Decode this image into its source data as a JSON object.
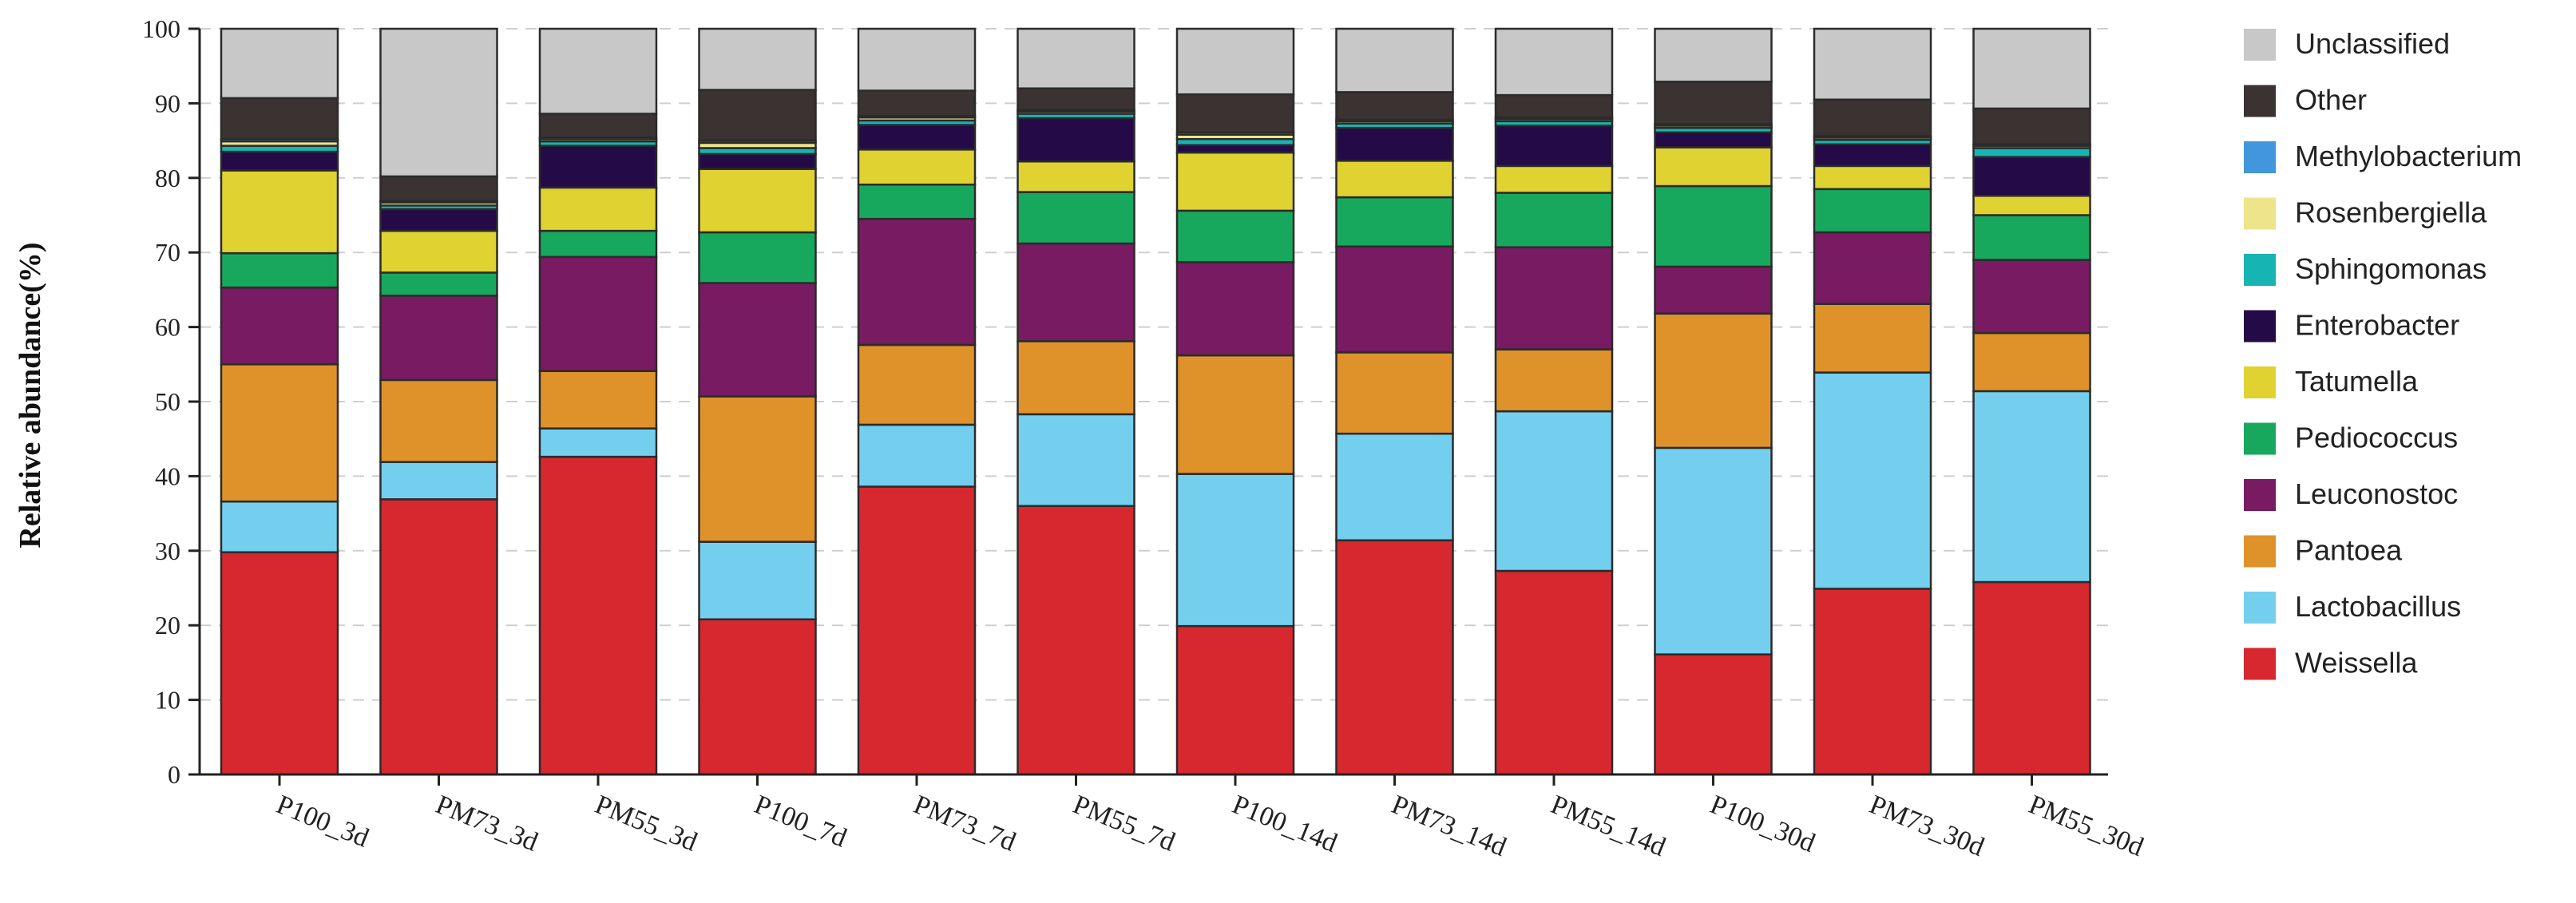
{
  "chart_data": {
    "type": "bar",
    "stacked": true,
    "ylabel": "Relative abundance(%)",
    "xlabel": "",
    "ylim": [
      0,
      100
    ],
    "yticks": [
      0,
      10,
      20,
      30,
      40,
      50,
      60,
      70,
      80,
      90,
      100
    ],
    "grid": "horizontal dashed",
    "legend_position": "right",
    "categories": [
      "P100_3d",
      "PM73_3d",
      "PM55_3d",
      "P100_7d",
      "PM73_7d",
      "PM55_7d",
      "P100_14d",
      "PM73_14d",
      "PM55_14d",
      "P100_30d",
      "PM73_30d",
      "PM55_30d"
    ],
    "series": [
      {
        "name": "Weissella",
        "color": "#d7282f",
        "values": [
          29.8,
          36.9,
          42.6,
          20.8,
          38.6,
          36.0,
          19.9,
          31.4,
          27.3,
          16.1,
          24.9,
          25.8
        ]
      },
      {
        "name": "Lactobacillus",
        "color": "#74cfee",
        "values": [
          6.8,
          5.0,
          3.8,
          10.4,
          8.3,
          12.3,
          20.4,
          14.3,
          21.4,
          27.7,
          29.0,
          25.6
        ]
      },
      {
        "name": "Pantoea",
        "color": "#e0922a",
        "values": [
          18.4,
          11.0,
          7.7,
          19.5,
          10.7,
          9.8,
          15.9,
          10.9,
          8.3,
          18.0,
          9.2,
          7.8
        ]
      },
      {
        "name": "Leuconostoc",
        "color": "#791b62",
        "values": [
          10.3,
          11.3,
          15.3,
          15.2,
          16.9,
          13.1,
          12.5,
          14.2,
          13.7,
          6.3,
          9.6,
          9.8
        ]
      },
      {
        "name": "Pediococcus",
        "color": "#18a85d",
        "values": [
          4.6,
          3.1,
          3.5,
          6.8,
          4.6,
          6.9,
          6.9,
          6.6,
          7.3,
          10.8,
          5.8,
          6.0
        ]
      },
      {
        "name": "Tatumella",
        "color": "#e0d231",
        "values": [
          11.1,
          5.6,
          5.8,
          8.5,
          4.7,
          4.1,
          7.8,
          4.9,
          3.6,
          5.2,
          3.1,
          2.6
        ]
      },
      {
        "name": "Enterobacter",
        "color": "#250a48",
        "values": [
          2.5,
          2.9,
          5.6,
          2.0,
          3.3,
          5.8,
          1.0,
          4.4,
          5.4,
          2.0,
          2.9,
          5.2
        ]
      },
      {
        "name": "Sphingomonas",
        "color": "#17b4b4",
        "values": [
          0.8,
          0.5,
          0.6,
          0.8,
          0.6,
          0.6,
          0.8,
          0.6,
          0.6,
          0.6,
          0.6,
          1.2
        ]
      },
      {
        "name": "Rosenbergiella",
        "color": "#ede48c",
        "values": [
          0.6,
          0.4,
          0.3,
          0.7,
          0.4,
          0.3,
          0.6,
          0.3,
          0.3,
          0.3,
          0.3,
          0.3
        ]
      },
      {
        "name": "Methylobacterium",
        "color": "#4196dc",
        "values": [
          0.3,
          0.2,
          0.2,
          0.3,
          0.2,
          0.2,
          0.3,
          0.2,
          0.2,
          0.2,
          0.2,
          0.2
        ]
      },
      {
        "name": "Other",
        "color": "#3a3331",
        "values": [
          5.5,
          3.3,
          3.2,
          6.8,
          3.4,
          2.9,
          5.1,
          3.7,
          3.0,
          5.7,
          4.9,
          4.8
        ]
      },
      {
        "name": "Unclassified",
        "color": "#c8c8c8",
        "values": [
          9.3,
          19.8,
          11.4,
          8.2,
          8.3,
          8.0,
          8.8,
          8.5,
          8.9,
          7.1,
          9.5,
          10.7
        ]
      }
    ],
    "legend_order": [
      "Unclassified",
      "Other",
      "Methylobacterium",
      "Rosenbergiella",
      "Sphingomonas",
      "Enterobacter",
      "Tatumella",
      "Pediococcus",
      "Leuconostoc",
      "Pantoea",
      "Lactobacillus",
      "Weissella"
    ]
  }
}
